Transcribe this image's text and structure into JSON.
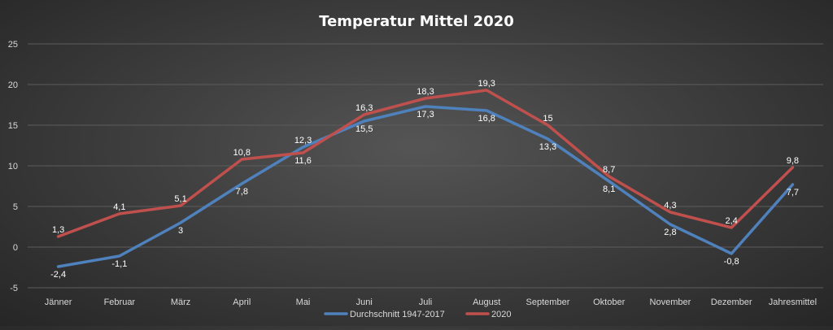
{
  "chart_data": {
    "type": "line",
    "title": "Temperatur Mittel 2020",
    "categories": [
      "Jänner",
      "Februar",
      "März",
      "April",
      "Mai",
      "Juni",
      "Juli",
      "August",
      "September",
      "Oktober",
      "November",
      "Dezember",
      "Jahresmittel"
    ],
    "series": [
      {
        "name": "Durchschnitt 1947-2017",
        "color": "#4f81bd",
        "values": [
          -2.4,
          -1.1,
          3,
          7.8,
          12.3,
          15.5,
          17.3,
          16.8,
          13.3,
          8.1,
          2.8,
          -0.8,
          7.7
        ],
        "labels": [
          "-2,4",
          "-1,1",
          "3",
          "7,8",
          "12,3",
          "15,5",
          "17,3",
          "16,8",
          "13,3",
          "8,1",
          "2,8",
          "-0,8",
          "7,7"
        ]
      },
      {
        "name": "2020",
        "color": "#c0504d",
        "values": [
          1.3,
          4.1,
          5.1,
          10.8,
          11.6,
          16.3,
          18.3,
          19.3,
          15,
          8.7,
          4.3,
          2.4,
          9.8
        ],
        "labels": [
          "1,3",
          "4,1",
          "5,1",
          "10,8",
          "11,6",
          "16,3",
          "18,3",
          "19,3",
          "15",
          "8,7",
          "4,3",
          "2,4",
          "9,8"
        ]
      }
    ],
    "yticks": [
      "-5",
      "0",
      "5",
      "10",
      "15",
      "20",
      "25"
    ],
    "ylim": [
      -5,
      25
    ],
    "grid": true,
    "legend_position": "bottom"
  }
}
